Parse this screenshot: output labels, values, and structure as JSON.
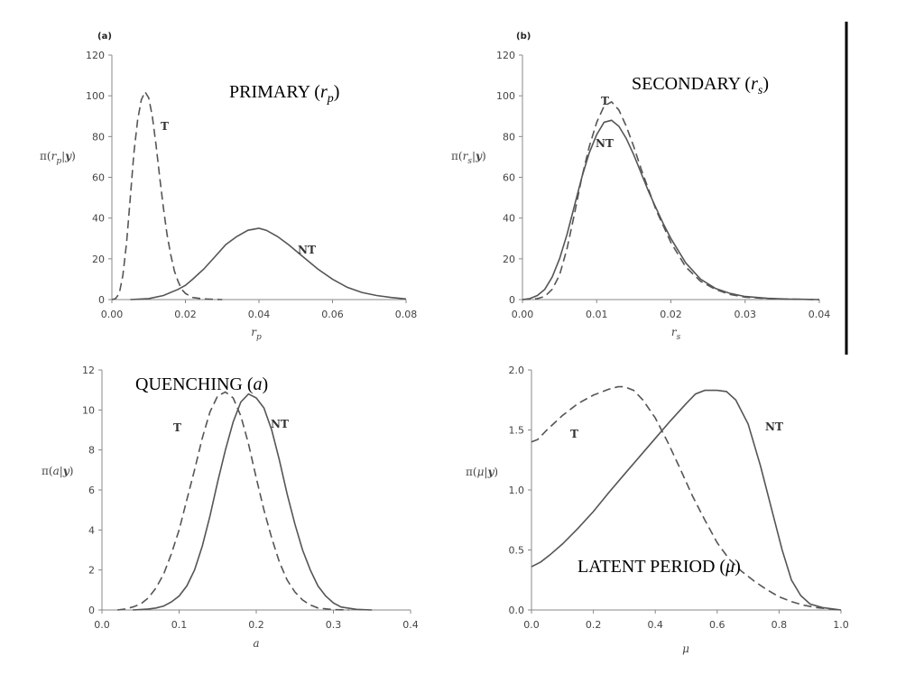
{
  "chart_data": [
    {
      "type": "line",
      "panel_label": "(a)",
      "title": "PRIMARY (r_p)",
      "title_main": "PRIMARY (",
      "title_var": "r",
      "title_sub": "p",
      "title_close": ")",
      "xlabel": "r_p",
      "xlabel_main": "r",
      "xlabel_sub": "p",
      "ylabel": "π(r_p|y)",
      "ylabel_parts": [
        "π(",
        "r",
        "p",
        "|",
        "y",
        ")"
      ],
      "xlim": [
        0,
        0.08
      ],
      "ylim": [
        0,
        120
      ],
      "xticks": [
        "0.00",
        "0.02",
        "0.04",
        "0.06",
        "0.08"
      ],
      "yticks": [
        "0",
        "20",
        "40",
        "60",
        "80",
        "100",
        "120"
      ],
      "series": [
        {
          "name": "T",
          "style": "dashed",
          "points": [
            [
              0,
              0
            ],
            [
              0.001,
              0.5
            ],
            [
              0.002,
              3
            ],
            [
              0.003,
              12
            ],
            [
              0.004,
              28
            ],
            [
              0.005,
              50
            ],
            [
              0.006,
              72
            ],
            [
              0.007,
              88
            ],
            [
              0.008,
              98
            ],
            [
              0.009,
              102
            ],
            [
              0.01,
              99
            ],
            [
              0.011,
              90
            ],
            [
              0.012,
              76
            ],
            [
              0.013,
              60
            ],
            [
              0.014,
              45
            ],
            [
              0.015,
              32
            ],
            [
              0.016,
              22
            ],
            [
              0.017,
              14
            ],
            [
              0.018,
              9
            ],
            [
              0.019,
              5
            ],
            [
              0.02,
              3
            ],
            [
              0.022,
              1
            ],
            [
              0.025,
              0.3
            ],
            [
              0.03,
              0
            ]
          ]
        },
        {
          "name": "NT",
          "style": "solid",
          "points": [
            [
              0.005,
              0
            ],
            [
              0.01,
              0.5
            ],
            [
              0.014,
              2
            ],
            [
              0.018,
              5
            ],
            [
              0.02,
              7
            ],
            [
              0.022,
              10
            ],
            [
              0.025,
              15
            ],
            [
              0.028,
              21
            ],
            [
              0.031,
              27
            ],
            [
              0.034,
              31
            ],
            [
              0.037,
              34
            ],
            [
              0.04,
              35
            ],
            [
              0.042,
              34
            ],
            [
              0.045,
              31
            ],
            [
              0.048,
              27
            ],
            [
              0.052,
              21
            ],
            [
              0.056,
              15
            ],
            [
              0.06,
              10
            ],
            [
              0.064,
              6
            ],
            [
              0.068,
              3.5
            ],
            [
              0.072,
              2
            ],
            [
              0.076,
              1
            ],
            [
              0.08,
              0.3
            ]
          ]
        }
      ]
    },
    {
      "type": "line",
      "panel_label": "(b)",
      "title": "SECONDARY (r_s)",
      "title_main": "SECONDARY (",
      "title_var": "r",
      "title_sub": "s",
      "title_close": ")",
      "xlabel": "r_s",
      "xlabel_main": "r",
      "xlabel_sub": "s",
      "ylabel": "π(r_s|y)",
      "ylabel_parts": [
        "π(",
        "r",
        "s",
        "|",
        "y",
        ")"
      ],
      "xlim": [
        0,
        0.04
      ],
      "ylim": [
        0,
        120
      ],
      "xticks": [
        "0.00",
        "0.01",
        "0.02",
        "0.03",
        "0.04"
      ],
      "yticks": [
        "0",
        "20",
        "40",
        "60",
        "80",
        "100",
        "120"
      ],
      "series": [
        {
          "name": "T",
          "style": "dashed",
          "points": [
            [
              0,
              0
            ],
            [
              0.002,
              0.5
            ],
            [
              0.003,
              1.5
            ],
            [
              0.004,
              5
            ],
            [
              0.005,
              12
            ],
            [
              0.006,
              25
            ],
            [
              0.007,
              42
            ],
            [
              0.008,
              60
            ],
            [
              0.009,
              75
            ],
            [
              0.01,
              87
            ],
            [
              0.011,
              95
            ],
            [
              0.012,
              97
            ],
            [
              0.013,
              93
            ],
            [
              0.014,
              85
            ],
            [
              0.015,
              75
            ],
            [
              0.016,
              64
            ],
            [
              0.017,
              54
            ],
            [
              0.018,
              44
            ],
            [
              0.019,
              36
            ],
            [
              0.02,
              28
            ],
            [
              0.021,
              22
            ],
            [
              0.022,
              16
            ],
            [
              0.024,
              9
            ],
            [
              0.026,
              5
            ],
            [
              0.028,
              2.5
            ],
            [
              0.03,
              1.2
            ],
            [
              0.033,
              0.5
            ],
            [
              0.036,
              0.2
            ],
            [
              0.04,
              0
            ]
          ]
        },
        {
          "name": "NT",
          "style": "solid",
          "points": [
            [
              0,
              0
            ],
            [
              0.001,
              0.5
            ],
            [
              0.002,
              2
            ],
            [
              0.003,
              5
            ],
            [
              0.004,
              11
            ],
            [
              0.005,
              20
            ],
            [
              0.006,
              32
            ],
            [
              0.007,
              46
            ],
            [
              0.008,
              60
            ],
            [
              0.009,
              72
            ],
            [
              0.01,
              81
            ],
            [
              0.011,
              87
            ],
            [
              0.012,
              88
            ],
            [
              0.013,
              85
            ],
            [
              0.014,
              79
            ],
            [
              0.015,
              71
            ],
            [
              0.016,
              62
            ],
            [
              0.017,
              53
            ],
            [
              0.018,
              45
            ],
            [
              0.019,
              37
            ],
            [
              0.02,
              30
            ],
            [
              0.021,
              24
            ],
            [
              0.022,
              18
            ],
            [
              0.024,
              10
            ],
            [
              0.026,
              5.5
            ],
            [
              0.028,
              3
            ],
            [
              0.03,
              1.5
            ],
            [
              0.033,
              0.6
            ],
            [
              0.036,
              0.2
            ],
            [
              0.04,
              0
            ]
          ]
        }
      ]
    },
    {
      "type": "line",
      "panel_label": "",
      "title": "QUENCHING (a)",
      "title_main": "QUENCHING (",
      "title_var": "a",
      "title_sub": "",
      "title_close": ")",
      "xlabel": "a",
      "xlabel_main": "a",
      "xlabel_sub": "",
      "ylabel": "π(a|y)",
      "ylabel_parts": [
        "π(",
        "a",
        "",
        "|",
        "y",
        ")"
      ],
      "xlim": [
        0,
        0.4
      ],
      "ylim": [
        0,
        12
      ],
      "xticks": [
        "0.0",
        "0.1",
        "0.2",
        "0.3",
        "0.4"
      ],
      "yticks": [
        "0",
        "2",
        "4",
        "6",
        "8",
        "10",
        "12"
      ],
      "series": [
        {
          "name": "T",
          "style": "dashed",
          "points": [
            [
              0.02,
              0
            ],
            [
              0.03,
              0.05
            ],
            [
              0.04,
              0.15
            ],
            [
              0.05,
              0.3
            ],
            [
              0.06,
              0.6
            ],
            [
              0.07,
              1.1
            ],
            [
              0.08,
              1.8
            ],
            [
              0.09,
              2.8
            ],
            [
              0.1,
              4.0
            ],
            [
              0.11,
              5.5
            ],
            [
              0.12,
              7.0
            ],
            [
              0.13,
              8.6
            ],
            [
              0.14,
              9.9
            ],
            [
              0.15,
              10.7
            ],
            [
              0.16,
              10.9
            ],
            [
              0.17,
              10.6
            ],
            [
              0.18,
              9.7
            ],
            [
              0.19,
              8.3
            ],
            [
              0.2,
              6.6
            ],
            [
              0.21,
              5.0
            ],
            [
              0.22,
              3.6
            ],
            [
              0.23,
              2.4
            ],
            [
              0.24,
              1.5
            ],
            [
              0.25,
              0.9
            ],
            [
              0.26,
              0.5
            ],
            [
              0.27,
              0.25
            ],
            [
              0.28,
              0.1
            ],
            [
              0.3,
              0.02
            ],
            [
              0.32,
              0
            ]
          ]
        },
        {
          "name": "NT",
          "style": "solid",
          "points": [
            [
              0.04,
              0
            ],
            [
              0.06,
              0.05
            ],
            [
              0.07,
              0.1
            ],
            [
              0.08,
              0.2
            ],
            [
              0.09,
              0.4
            ],
            [
              0.1,
              0.7
            ],
            [
              0.11,
              1.2
            ],
            [
              0.12,
              2.0
            ],
            [
              0.13,
              3.2
            ],
            [
              0.14,
              4.7
            ],
            [
              0.15,
              6.4
            ],
            [
              0.16,
              8.0
            ],
            [
              0.17,
              9.4
            ],
            [
              0.18,
              10.4
            ],
            [
              0.19,
              10.8
            ],
            [
              0.2,
              10.6
            ],
            [
              0.21,
              10.1
            ],
            [
              0.22,
              9.0
            ],
            [
              0.23,
              7.5
            ],
            [
              0.24,
              5.8
            ],
            [
              0.25,
              4.3
            ],
            [
              0.26,
              3.0
            ],
            [
              0.27,
              2.0
            ],
            [
              0.28,
              1.2
            ],
            [
              0.29,
              0.7
            ],
            [
              0.3,
              0.35
            ],
            [
              0.31,
              0.15
            ],
            [
              0.33,
              0.03
            ],
            [
              0.35,
              0
            ]
          ]
        }
      ]
    },
    {
      "type": "line",
      "panel_label": "",
      "title": "LATENT PERIOD (μ)",
      "title_main": "LATENT PERIOD (",
      "title_var": "μ",
      "title_sub": "",
      "title_close": ")",
      "xlabel": "μ",
      "xlabel_main": "μ",
      "xlabel_sub": "",
      "ylabel": "π(μ|y)",
      "ylabel_parts": [
        "π(",
        "μ",
        "",
        "|",
        "y",
        ")"
      ],
      "xlim": [
        0,
        1.0
      ],
      "ylim": [
        0,
        2.0
      ],
      "xticks": [
        "0.0",
        "0.2",
        "0.4",
        "0.6",
        "0.8",
        "1.0"
      ],
      "yticks": [
        "0.0",
        "0.5",
        "1.0",
        "1.5",
        "2.0"
      ],
      "series": [
        {
          "name": "T",
          "style": "dashed",
          "points": [
            [
              0,
              1.4
            ],
            [
              0.02,
              1.42
            ],
            [
              0.05,
              1.5
            ],
            [
              0.1,
              1.62
            ],
            [
              0.15,
              1.72
            ],
            [
              0.2,
              1.79
            ],
            [
              0.25,
              1.84
            ],
            [
              0.28,
              1.86
            ],
            [
              0.3,
              1.86
            ],
            [
              0.33,
              1.83
            ],
            [
              0.36,
              1.75
            ],
            [
              0.4,
              1.6
            ],
            [
              0.44,
              1.4
            ],
            [
              0.48,
              1.18
            ],
            [
              0.52,
              0.95
            ],
            [
              0.56,
              0.75
            ],
            [
              0.6,
              0.56
            ],
            [
              0.64,
              0.42
            ],
            [
              0.68,
              0.32
            ],
            [
              0.72,
              0.24
            ],
            [
              0.76,
              0.17
            ],
            [
              0.8,
              0.11
            ],
            [
              0.84,
              0.07
            ],
            [
              0.88,
              0.04
            ],
            [
              0.92,
              0.02
            ],
            [
              0.96,
              0.01
            ],
            [
              1.0,
              0
            ]
          ]
        },
        {
          "name": "NT",
          "style": "solid",
          "points": [
            [
              0,
              0.36
            ],
            [
              0.03,
              0.4
            ],
            [
              0.06,
              0.46
            ],
            [
              0.1,
              0.55
            ],
            [
              0.15,
              0.68
            ],
            [
              0.2,
              0.82
            ],
            [
              0.25,
              0.98
            ],
            [
              0.3,
              1.13
            ],
            [
              0.35,
              1.28
            ],
            [
              0.4,
              1.43
            ],
            [
              0.45,
              1.58
            ],
            [
              0.5,
              1.72
            ],
            [
              0.53,
              1.8
            ],
            [
              0.56,
              1.83
            ],
            [
              0.6,
              1.83
            ],
            [
              0.63,
              1.82
            ],
            [
              0.66,
              1.75
            ],
            [
              0.7,
              1.55
            ],
            [
              0.74,
              1.2
            ],
            [
              0.78,
              0.8
            ],
            [
              0.81,
              0.5
            ],
            [
              0.84,
              0.25
            ],
            [
              0.87,
              0.12
            ],
            [
              0.9,
              0.05
            ],
            [
              0.94,
              0.02
            ],
            [
              1.0,
              0
            ]
          ]
        }
      ]
    }
  ]
}
